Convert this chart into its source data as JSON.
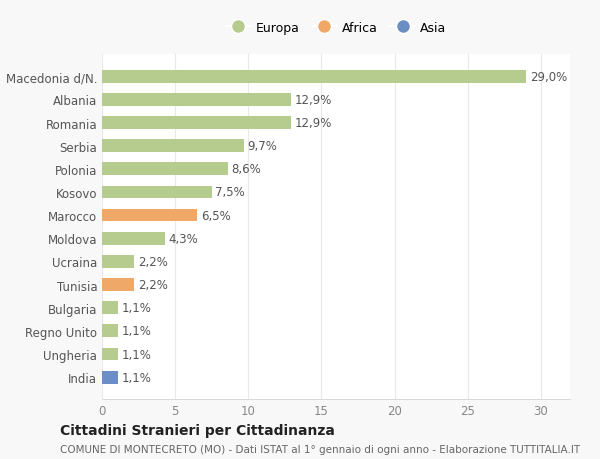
{
  "categories": [
    "Macedonia d/N.",
    "Albania",
    "Romania",
    "Serbia",
    "Polonia",
    "Kosovo",
    "Marocco",
    "Moldova",
    "Ucraina",
    "Tunisia",
    "Bulgaria",
    "Regno Unito",
    "Ungheria",
    "India"
  ],
  "values": [
    29.0,
    12.9,
    12.9,
    9.7,
    8.6,
    7.5,
    6.5,
    4.3,
    2.2,
    2.2,
    1.1,
    1.1,
    1.1,
    1.1
  ],
  "labels": [
    "29,0%",
    "12,9%",
    "12,9%",
    "9,7%",
    "8,6%",
    "7,5%",
    "6,5%",
    "4,3%",
    "2,2%",
    "2,2%",
    "1,1%",
    "1,1%",
    "1,1%",
    "1,1%"
  ],
  "continent": [
    "Europa",
    "Europa",
    "Europa",
    "Europa",
    "Europa",
    "Europa",
    "Africa",
    "Europa",
    "Europa",
    "Africa",
    "Europa",
    "Europa",
    "Europa",
    "Asia"
  ],
  "colors": {
    "Europa": "#b5cc8e",
    "Africa": "#f0a868",
    "Asia": "#6b8fc4"
  },
  "title": "Cittadini Stranieri per Cittadinanza",
  "subtitle": "COMUNE DI MONTECRETO (MO) - Dati ISTAT al 1° gennaio di ogni anno - Elaborazione TUTTITALIA.IT",
  "xlim": [
    0,
    32
  ],
  "xticks": [
    0,
    5,
    10,
    15,
    20,
    25,
    30
  ],
  "background_color": "#f8f8f8",
  "plot_bg_color": "#ffffff",
  "grid_color": "#e8e8e8",
  "bar_height": 0.55,
  "title_fontsize": 10,
  "subtitle_fontsize": 7.5,
  "tick_fontsize": 8.5,
  "label_fontsize": 8.5,
  "legend_fontsize": 9
}
